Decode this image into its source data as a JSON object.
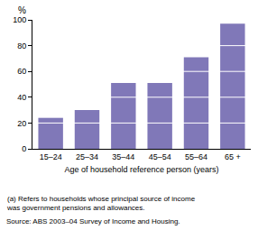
{
  "chart_data": {
    "type": "bar",
    "ylabel": "%",
    "xlabel": "Age of household reference person (years)",
    "categories": [
      "15–24",
      "25–34",
      "35–44",
      "45–54",
      "55–64",
      "65 +"
    ],
    "values": [
      24,
      30,
      51,
      51,
      71,
      97
    ],
    "color": "#8078b8",
    "ylim": [
      0,
      100
    ],
    "yticks": [
      0,
      20,
      40,
      60,
      80,
      100
    ],
    "grid": true,
    "annotations": [
      [
        "(a) Refers to households whose principal source of income",
        "was government pensions and allowances."
      ],
      [
        "Source: ABS 2003–04 Survey of Income and Housing."
      ]
    ]
  }
}
